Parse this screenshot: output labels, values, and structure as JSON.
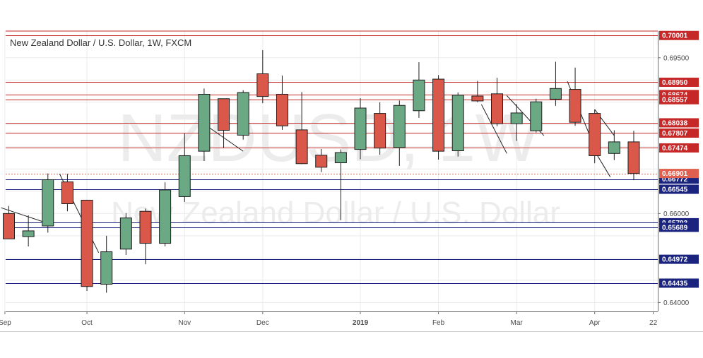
{
  "chart_data": {
    "type": "candlestick",
    "title": "New Zealand Dollar / U.S. Dollar, 1W, FXCM",
    "watermark": {
      "symbol": "NZDUSD, 1W",
      "name": "New Zealand Dollar / U.S. Dollar"
    },
    "ylim": [
      0.638,
      0.701
    ],
    "price_ticks": [
      {
        "value": 0.695,
        "label": "0.69500"
      },
      {
        "value": 0.66,
        "label": "0.66000"
      },
      {
        "value": 0.64,
        "label": "0.64000"
      }
    ],
    "x_labels": [
      {
        "index": -0.2,
        "label": "Sep"
      },
      {
        "index": 4.0,
        "label": "Oct"
      },
      {
        "index": 9.0,
        "label": "Nov"
      },
      {
        "index": 13.0,
        "label": "Dec"
      },
      {
        "index": 18.0,
        "label": "2019",
        "bold": true
      },
      {
        "index": 22.0,
        "label": "Feb"
      },
      {
        "index": 26.0,
        "label": "Mar"
      },
      {
        "index": 30.0,
        "label": "Apr"
      },
      {
        "index": 33.0,
        "label": "22"
      }
    ],
    "candles": [
      {
        "o": 0.66,
        "h": 0.6617,
        "l": 0.6545,
        "c": 0.6543
      },
      {
        "o": 0.6548,
        "h": 0.6596,
        "l": 0.6526,
        "c": 0.6561
      },
      {
        "o": 0.6572,
        "h": 0.669,
        "l": 0.6557,
        "c": 0.6676
      },
      {
        "o": 0.6671,
        "h": 0.6689,
        "l": 0.6605,
        "c": 0.6622
      },
      {
        "o": 0.663,
        "h": 0.6631,
        "l": 0.6426,
        "c": 0.6436
      },
      {
        "o": 0.6441,
        "h": 0.655,
        "l": 0.6422,
        "c": 0.6514
      },
      {
        "o": 0.652,
        "h": 0.6601,
        "l": 0.6507,
        "c": 0.659
      },
      {
        "o": 0.6605,
        "h": 0.6611,
        "l": 0.6486,
        "c": 0.6533
      },
      {
        "o": 0.6533,
        "h": 0.667,
        "l": 0.6526,
        "c": 0.6653
      },
      {
        "o": 0.6638,
        "h": 0.678,
        "l": 0.6626,
        "c": 0.673
      },
      {
        "o": 0.674,
        "h": 0.6881,
        "l": 0.6718,
        "c": 0.6868
      },
      {
        "o": 0.6858,
        "h": 0.6858,
        "l": 0.6748,
        "c": 0.6787
      },
      {
        "o": 0.6776,
        "h": 0.6877,
        "l": 0.6766,
        "c": 0.6872
      },
      {
        "o": 0.6914,
        "h": 0.6967,
        "l": 0.6848,
        "c": 0.6863
      },
      {
        "o": 0.6868,
        "h": 0.691,
        "l": 0.6788,
        "c": 0.6797
      },
      {
        "o": 0.6788,
        "h": 0.6873,
        "l": 0.6711,
        "c": 0.6712
      },
      {
        "o": 0.6731,
        "h": 0.6745,
        "l": 0.6693,
        "c": 0.6704
      },
      {
        "o": 0.6714,
        "h": 0.6744,
        "l": 0.6585,
        "c": 0.6737
      },
      {
        "o": 0.6744,
        "h": 0.6859,
        "l": 0.6722,
        "c": 0.6837
      },
      {
        "o": 0.6825,
        "h": 0.685,
        "l": 0.6732,
        "c": 0.6747
      },
      {
        "o": 0.6748,
        "h": 0.6854,
        "l": 0.6707,
        "c": 0.6843
      },
      {
        "o": 0.6831,
        "h": 0.694,
        "l": 0.6815,
        "c": 0.69
      },
      {
        "o": 0.6902,
        "h": 0.6911,
        "l": 0.6721,
        "c": 0.674
      },
      {
        "o": 0.6741,
        "h": 0.6872,
        "l": 0.6728,
        "c": 0.6866
      },
      {
        "o": 0.6864,
        "h": 0.6898,
        "l": 0.685,
        "c": 0.6853
      },
      {
        "o": 0.6869,
        "h": 0.6905,
        "l": 0.6796,
        "c": 0.6802
      },
      {
        "o": 0.6802,
        "h": 0.6846,
        "l": 0.6763,
        "c": 0.6826
      },
      {
        "o": 0.6786,
        "h": 0.6858,
        "l": 0.6782,
        "c": 0.6851
      },
      {
        "o": 0.6857,
        "h": 0.6941,
        "l": 0.6842,
        "c": 0.6881
      },
      {
        "o": 0.6879,
        "h": 0.6928,
        "l": 0.6797,
        "c": 0.6805
      },
      {
        "o": 0.6825,
        "h": 0.6834,
        "l": 0.6713,
        "c": 0.673
      },
      {
        "o": 0.6735,
        "h": 0.6787,
        "l": 0.672,
        "c": 0.6761
      },
      {
        "o": 0.6761,
        "h": 0.6786,
        "l": 0.6675,
        "c": 0.669
      }
    ],
    "levels": [
      {
        "value": 0.70001,
        "label": "0.70001",
        "color": "#c62828"
      },
      {
        "value": 0.6895,
        "label": "0.68950",
        "color": "#c62828"
      },
      {
        "value": 0.68674,
        "label": "0.68674",
        "color": "#c62828"
      },
      {
        "value": 0.68557,
        "label": "0.68557",
        "color": "#c62828"
      },
      {
        "value": 0.68038,
        "label": "0.68038",
        "color": "#c62828"
      },
      {
        "value": 0.67807,
        "label": "0.67807",
        "color": "#c62828"
      },
      {
        "value": 0.67474,
        "label": "0.67474",
        "color": "#c62828"
      },
      {
        "value": 0.66772,
        "label": "0.66772",
        "color": "#1a237e"
      },
      {
        "value": 0.66545,
        "label": "0.66545",
        "color": "#1a237e"
      },
      {
        "value": 0.65793,
        "label": "0.65793",
        "color": "#1a237e"
      },
      {
        "value": 0.65689,
        "label": "0.65689",
        "color": "#1a237e"
      },
      {
        "value": 0.64972,
        "label": "0.64972",
        "color": "#1a237e"
      },
      {
        "value": 0.64435,
        "label": "0.64435",
        "color": "#1a237e"
      }
    ],
    "current_price": {
      "value": 0.66901,
      "label": "0.66901",
      "color": "#e0604f"
    },
    "trendlines": [
      {
        "from": [
          -0.4,
          0.6613
        ],
        "to": [
          2.2,
          0.6575
        ]
      },
      {
        "from": [
          2.6,
          0.6689
        ],
        "to": [
          4.6,
          0.6512
        ]
      },
      {
        "from": [
          10.2,
          0.6795
        ],
        "to": [
          12.0,
          0.674
        ]
      },
      {
        "from": [
          24.2,
          0.6845
        ],
        "to": [
          25.5,
          0.6735
        ]
      },
      {
        "from": [
          25.5,
          0.6865
        ],
        "to": [
          27.4,
          0.6775
        ]
      },
      {
        "from": [
          28.6,
          0.6897
        ],
        "to": [
          29.8,
          0.677
        ]
      },
      {
        "from": [
          29.8,
          0.6755
        ],
        "to": [
          30.8,
          0.6682
        ]
      },
      {
        "from": [
          30.0,
          0.6834
        ],
        "to": [
          31.0,
          0.6775
        ]
      }
    ],
    "colors": {
      "up": "#6aa984",
      "down": "#d9584a",
      "outline": "#1f1f1f",
      "grid": "#ebebeb"
    }
  }
}
